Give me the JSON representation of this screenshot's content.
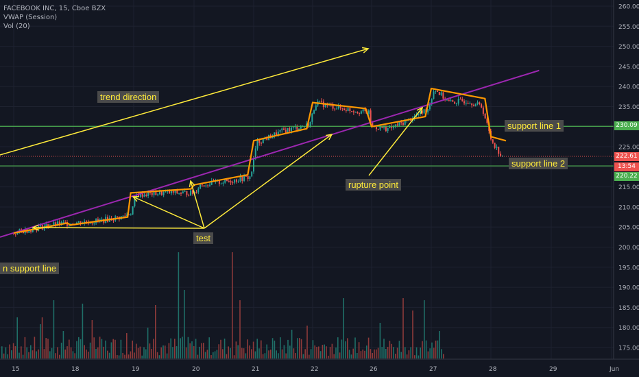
{
  "legend": {
    "symbol": "FACEBOOK INC, 15, Cboe BZX",
    "vwap": "VWAP (Session)",
    "vol": "Vol (20)"
  },
  "annotations": {
    "trend_direction": "trend direction",
    "test": "test",
    "rupture_point": "rupture point",
    "support_line_1": "support line 1",
    "support_line_2": "support line 2",
    "support_line_left": "n support line"
  },
  "price_tags": {
    "support1": "230.09",
    "last": "222.61",
    "countdown": "13:54",
    "support2": "220.22"
  },
  "colors": {
    "background": "#131722",
    "up": "#26a69a",
    "down": "#ef5350",
    "vwap": "#ff9800",
    "support": "#4caf50",
    "trendline": "#9c27b0",
    "arrow": "#ffeb3b",
    "last_price": "#ef5350"
  },
  "chart_data": {
    "type": "candlestick",
    "y_ticks": [
      "260.00",
      "255.00",
      "250.00",
      "245.00",
      "240.00",
      "235.00",
      "230.00",
      "225.00",
      "220.00",
      "215.00",
      "210.00",
      "205.00",
      "200.00",
      "195.00",
      "190.00",
      "185.00",
      "180.00",
      "175.00"
    ],
    "x_ticks": [
      "15",
      "18",
      "19",
      "20",
      "21",
      "22",
      "26",
      "27",
      "28",
      "29",
      "Jun"
    ],
    "ylim": [
      172,
      261
    ],
    "support_line_1": 230.09,
    "support_line_2": 220.22,
    "last_price": 222.61,
    "price_path": [
      [
        0,
        203.5
      ],
      [
        0.3,
        204.5
      ],
      [
        0.6,
        205.5
      ],
      [
        0.95,
        206.0
      ],
      [
        1.4,
        206.5
      ],
      [
        1.8,
        207.5
      ],
      [
        1.95,
        208.5
      ],
      [
        2.05,
        213.0
      ],
      [
        2.5,
        213.5
      ],
      [
        3.0,
        213.5
      ],
      [
        3.1,
        215.5
      ],
      [
        3.6,
        216.5
      ],
      [
        3.95,
        217.5
      ],
      [
        4.05,
        226.0
      ],
      [
        4.5,
        229.0
      ],
      [
        4.95,
        230.5
      ],
      [
        5.05,
        236.0
      ],
      [
        5.5,
        234.5
      ],
      [
        5.95,
        233.5
      ],
      [
        6.0,
        230.0
      ],
      [
        6.3,
        229.5
      ],
      [
        6.6,
        231.5
      ],
      [
        6.95,
        234.5
      ],
      [
        7.05,
        239.5
      ],
      [
        7.3,
        236.0
      ],
      [
        7.6,
        236.5
      ],
      [
        7.85,
        235.0
      ],
      [
        8.0,
        227.0
      ],
      [
        8.2,
        222.0
      ]
    ],
    "vwap_path": [
      [
        0,
        203.5
      ],
      [
        0.9,
        206.0
      ],
      [
        0.95,
        205.5
      ],
      [
        1.9,
        207.5
      ],
      [
        1.95,
        213.5
      ],
      [
        2.95,
        214.5
      ],
      [
        3.0,
        215.5
      ],
      [
        3.9,
        218.0
      ],
      [
        4.0,
        226.5
      ],
      [
        4.9,
        229.5
      ],
      [
        5.0,
        236.0
      ],
      [
        5.9,
        234.5
      ],
      [
        6.0,
        230.0
      ],
      [
        6.9,
        232.5
      ],
      [
        7.0,
        239.5
      ],
      [
        7.9,
        237.0
      ],
      [
        8.0,
        227.5
      ],
      [
        8.25,
        226.5
      ]
    ],
    "volume_bars": 150
  }
}
